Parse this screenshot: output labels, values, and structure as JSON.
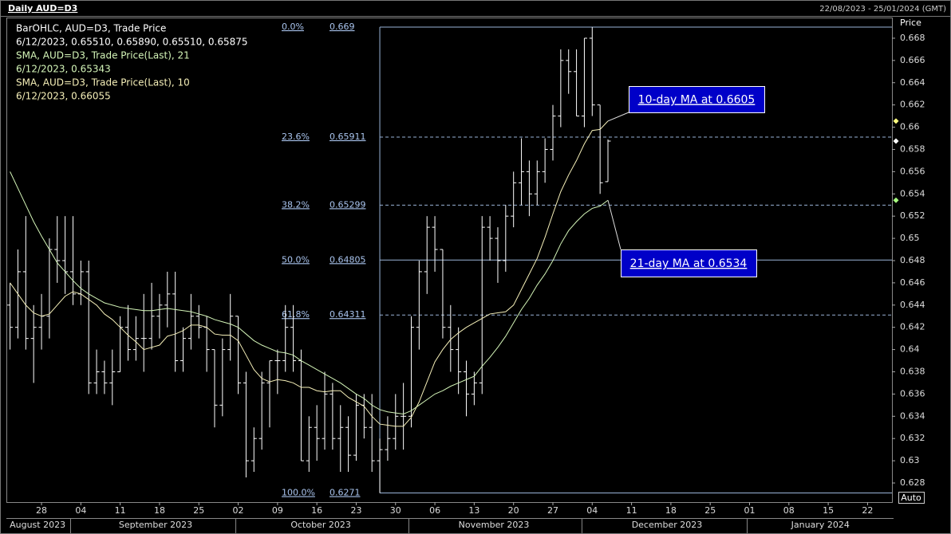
{
  "chart_data": {
    "type": "ohlc",
    "title": "Daily AUD=D3",
    "subtitle": "22/08/2023 - 25/01/2024 (GMT)",
    "y_axis_label": "Price",
    "scale_button": "Auto",
    "x": [
      "2023-08-22",
      "2023-08-23",
      "2023-08-24",
      "2023-08-25",
      "2023-08-28",
      "2023-08-29",
      "2023-08-30",
      "2023-08-31",
      "2023-09-01",
      "2023-09-04",
      "2023-09-05",
      "2023-09-06",
      "2023-09-07",
      "2023-09-08",
      "2023-09-11",
      "2023-09-12",
      "2023-09-13",
      "2023-09-14",
      "2023-09-15",
      "2023-09-18",
      "2023-09-19",
      "2023-09-20",
      "2023-09-21",
      "2023-09-22",
      "2023-09-25",
      "2023-09-26",
      "2023-09-27",
      "2023-09-28",
      "2023-09-29",
      "2023-10-02",
      "2023-10-03",
      "2023-10-04",
      "2023-10-05",
      "2023-10-06",
      "2023-10-09",
      "2023-10-10",
      "2023-10-11",
      "2023-10-12",
      "2023-10-13",
      "2023-10-16",
      "2023-10-17",
      "2023-10-18",
      "2023-10-19",
      "2023-10-20",
      "2023-10-23",
      "2023-10-24",
      "2023-10-25",
      "2023-10-26",
      "2023-10-27",
      "2023-10-30",
      "2023-10-31",
      "2023-11-01",
      "2023-11-02",
      "2023-11-03",
      "2023-11-06",
      "2023-11-07",
      "2023-11-08",
      "2023-11-09",
      "2023-11-10",
      "2023-11-13",
      "2023-11-14",
      "2023-11-15",
      "2023-11-16",
      "2023-11-17",
      "2023-11-20",
      "2023-11-21",
      "2023-11-22",
      "2023-11-23",
      "2023-11-24",
      "2023-11-27",
      "2023-11-28",
      "2023-11-29",
      "2023-11-30",
      "2023-12-01",
      "2023-12-04",
      "2023-12-05",
      "2023-12-06"
    ],
    "series": [
      {
        "name": "BarOHLC, AUD=D3, Trade Price",
        "type": "ohlc",
        "color": "#ffffff",
        "marker_color": "#ffffff",
        "last_label": "6/12/2023, 0.65510, 0.65890, 0.65510, 0.65875",
        "open": [
          0.644,
          0.642,
          0.647,
          0.641,
          0.642,
          0.643,
          0.649,
          0.648,
          0.647,
          0.645,
          0.647,
          0.637,
          0.638,
          0.637,
          0.638,
          0.642,
          0.64,
          0.641,
          0.641,
          0.643,
          0.644,
          0.645,
          0.639,
          0.641,
          0.643,
          0.642,
          0.64,
          0.635,
          0.64,
          0.643,
          0.637,
          0.63,
          0.632,
          0.637,
          0.639,
          0.639,
          0.642,
          0.639,
          0.63,
          0.633,
          0.632,
          0.636,
          0.632,
          0.633,
          0.6305,
          0.635,
          0.633,
          0.63,
          0.631,
          0.632,
          0.634,
          0.634,
          0.642,
          0.647,
          0.651,
          0.649,
          0.642,
          0.64,
          0.638,
          0.636,
          0.637,
          0.651,
          0.65,
          0.648,
          0.652,
          0.655,
          0.656,
          0.654,
          0.656,
          0.658,
          0.661,
          0.666,
          0.665,
          0.661,
          0.668,
          0.662,
          0.6551
        ],
        "high": [
          0.646,
          0.649,
          0.652,
          0.644,
          0.645,
          0.65,
          0.652,
          0.652,
          0.652,
          0.648,
          0.648,
          0.64,
          0.639,
          0.64,
          0.643,
          0.644,
          0.643,
          0.645,
          0.646,
          0.645,
          0.647,
          0.647,
          0.642,
          0.645,
          0.644,
          0.643,
          0.64,
          0.641,
          0.645,
          0.643,
          0.638,
          0.633,
          0.638,
          0.639,
          0.64,
          0.644,
          0.644,
          0.64,
          0.634,
          0.635,
          0.638,
          0.637,
          0.635,
          0.634,
          0.636,
          0.636,
          0.636,
          0.632,
          0.634,
          0.636,
          0.637,
          0.643,
          0.648,
          0.652,
          0.652,
          0.649,
          0.644,
          0.642,
          0.639,
          0.638,
          0.652,
          0.652,
          0.651,
          0.653,
          0.656,
          0.659,
          0.657,
          0.657,
          0.659,
          0.662,
          0.667,
          0.667,
          0.667,
          0.668,
          0.669,
          0.662,
          0.6589
        ],
        "low": [
          0.64,
          0.641,
          0.64,
          0.637,
          0.64,
          0.641,
          0.646,
          0.645,
          0.644,
          0.644,
          0.636,
          0.636,
          0.636,
          0.635,
          0.638,
          0.639,
          0.639,
          0.638,
          0.64,
          0.641,
          0.642,
          0.638,
          0.638,
          0.64,
          0.641,
          0.638,
          0.633,
          0.634,
          0.639,
          0.636,
          0.6285,
          0.629,
          0.631,
          0.633,
          0.636,
          0.638,
          0.638,
          0.63,
          0.629,
          0.63,
          0.631,
          0.631,
          0.629,
          0.629,
          0.63,
          0.632,
          0.629,
          0.6271,
          0.63,
          0.631,
          0.631,
          0.633,
          0.64,
          0.645,
          0.647,
          0.641,
          0.638,
          0.636,
          0.634,
          0.635,
          0.636,
          0.648,
          0.646,
          0.647,
          0.651,
          0.653,
          0.652,
          0.653,
          0.655,
          0.657,
          0.66,
          0.663,
          0.661,
          0.66,
          0.661,
          0.654,
          0.6551
        ],
        "close": [
          0.642,
          0.647,
          0.641,
          0.642,
          0.643,
          0.649,
          0.648,
          0.647,
          0.645,
          0.647,
          0.637,
          0.638,
          0.637,
          0.638,
          0.642,
          0.64,
          0.641,
          0.641,
          0.643,
          0.644,
          0.645,
          0.639,
          0.641,
          0.643,
          0.642,
          0.64,
          0.635,
          0.64,
          0.643,
          0.637,
          0.63,
          0.632,
          0.637,
          0.639,
          0.639,
          0.642,
          0.639,
          0.63,
          0.633,
          0.632,
          0.636,
          0.632,
          0.633,
          0.6305,
          0.635,
          0.633,
          0.63,
          0.631,
          0.632,
          0.634,
          0.634,
          0.642,
          0.647,
          0.651,
          0.649,
          0.642,
          0.64,
          0.638,
          0.636,
          0.637,
          0.651,
          0.65,
          0.648,
          0.652,
          0.655,
          0.656,
          0.654,
          0.656,
          0.658,
          0.661,
          0.666,
          0.665,
          0.661,
          0.668,
          0.662,
          0.655,
          0.65875
        ]
      },
      {
        "name": "SMA, AUD=D3, Trade Price(Last),  21",
        "type": "line",
        "color": "#d4f5b8",
        "marker_color": "#a8ff80",
        "last_label": "6/12/2023, 0.65343",
        "values": [
          0.656,
          0.6545,
          0.653,
          0.6515,
          0.6502,
          0.649,
          0.6478,
          0.647,
          0.6462,
          0.6455,
          0.645,
          0.6446,
          0.6442,
          0.644,
          0.6438,
          0.6437,
          0.6436,
          0.6435,
          0.6435,
          0.6436,
          0.6437,
          0.6436,
          0.6435,
          0.6434,
          0.6432,
          0.643,
          0.6427,
          0.6425,
          0.6423,
          0.642,
          0.6414,
          0.6408,
          0.6404,
          0.6401,
          0.6398,
          0.6397,
          0.6395,
          0.639,
          0.6386,
          0.6382,
          0.6378,
          0.6374,
          0.637,
          0.6365,
          0.636,
          0.6356,
          0.635,
          0.6346,
          0.6344,
          0.6343,
          0.6342,
          0.6345,
          0.635,
          0.6355,
          0.636,
          0.6363,
          0.6367,
          0.637,
          0.6373,
          0.6376,
          0.6385,
          0.6393,
          0.6402,
          0.6412,
          0.6424,
          0.6436,
          0.6446,
          0.6458,
          0.6468,
          0.648,
          0.6495,
          0.6507,
          0.6515,
          0.6522,
          0.6527,
          0.6529,
          0.65343
        ]
      },
      {
        "name": "SMA, AUD=D3, Trade Price(Last),  10",
        "type": "line",
        "color": "#f5efb8",
        "marker_color": "#ffff80",
        "last_label": "6/12/2023, 0.66055",
        "values": [
          0.646,
          0.645,
          0.644,
          0.6433,
          0.643,
          0.6432,
          0.644,
          0.6448,
          0.6452,
          0.645,
          0.6445,
          0.644,
          0.6432,
          0.6427,
          0.642,
          0.6413,
          0.6407,
          0.64,
          0.6402,
          0.6404,
          0.6412,
          0.6414,
          0.6417,
          0.6422,
          0.6422,
          0.642,
          0.6414,
          0.6413,
          0.6413,
          0.6408,
          0.6395,
          0.6382,
          0.6374,
          0.6371,
          0.6373,
          0.6372,
          0.637,
          0.6366,
          0.6366,
          0.6363,
          0.6362,
          0.6363,
          0.6363,
          0.6357,
          0.6353,
          0.6349,
          0.634,
          0.6333,
          0.6332,
          0.6331,
          0.6331,
          0.6339,
          0.6353,
          0.6371,
          0.6389,
          0.64,
          0.6409,
          0.6415,
          0.642,
          0.6424,
          0.6428,
          0.6432,
          0.6433,
          0.6434,
          0.644,
          0.6454,
          0.6468,
          0.6482,
          0.6501,
          0.6522,
          0.6542,
          0.6557,
          0.657,
          0.6585,
          0.6597,
          0.6598,
          0.66055
        ]
      }
    ],
    "ylim": [
      0.62628,
      0.66986
    ],
    "yticks": [
      0.628,
      0.63,
      0.632,
      0.634,
      0.636,
      0.638,
      0.64,
      0.642,
      0.644,
      0.646,
      0.648,
      0.65,
      0.652,
      0.654,
      0.656,
      0.658,
      0.66,
      0.662,
      0.664,
      0.666,
      0.668
    ],
    "xlim": [
      "2023-08-22",
      "2024-01-25"
    ],
    "xticks": [
      {
        "value": "2023-08-28",
        "label": "28"
      },
      {
        "value": "2023-09-04",
        "label": "04"
      },
      {
        "value": "2023-09-11",
        "label": "11"
      },
      {
        "value": "2023-09-18",
        "label": "18"
      },
      {
        "value": "2023-09-25",
        "label": "25"
      },
      {
        "value": "2023-10-02",
        "label": "02"
      },
      {
        "value": "2023-10-09",
        "label": "09"
      },
      {
        "value": "2023-10-16",
        "label": "16"
      },
      {
        "value": "2023-10-23",
        "label": "23"
      },
      {
        "value": "2023-10-30",
        "label": "30"
      },
      {
        "value": "2023-11-06",
        "label": "06"
      },
      {
        "value": "2023-11-13",
        "label": "13"
      },
      {
        "value": "2023-11-20",
        "label": "20"
      },
      {
        "value": "2023-11-27",
        "label": "27"
      },
      {
        "value": "2023-12-04",
        "label": "04"
      },
      {
        "value": "2023-12-11",
        "label": "11"
      },
      {
        "value": "2023-12-18",
        "label": "18"
      },
      {
        "value": "2023-12-25",
        "label": "25"
      },
      {
        "value": "2024-01-01",
        "label": "01"
      },
      {
        "value": "2024-01-08",
        "label": "08"
      },
      {
        "value": "2024-01-15",
        "label": "15"
      },
      {
        "value": "2024-01-22",
        "label": "22"
      }
    ],
    "months": [
      {
        "value": "2023-08",
        "label": "August 2023"
      },
      {
        "value": "2023-09",
        "label": "September 2023"
      },
      {
        "value": "2023-10",
        "label": "October 2023"
      },
      {
        "value": "2023-11",
        "label": "November 2023"
      },
      {
        "value": "2023-12",
        "label": "December 2023"
      },
      {
        "value": "2024-01",
        "label": "January 2024"
      }
    ],
    "fib_levels": [
      {
        "label": "0.0%",
        "price": 0.669,
        "dashed": false
      },
      {
        "label": "23.6%",
        "price": 0.65911,
        "dashed": true
      },
      {
        "label": "38.2%",
        "price": 0.65299,
        "dashed": true
      },
      {
        "label": "50.0%",
        "price": 0.64805,
        "dashed": false
      },
      {
        "label": "61.8%",
        "price": 0.64311,
        "dashed": true
      },
      {
        "label": "100.0%",
        "price": 0.6271,
        "dashed": false
      }
    ],
    "annotations": [
      {
        "text": "10-day MA at 0.6605"
      },
      {
        "text": "21-day MA at 0.6534"
      }
    ]
  }
}
